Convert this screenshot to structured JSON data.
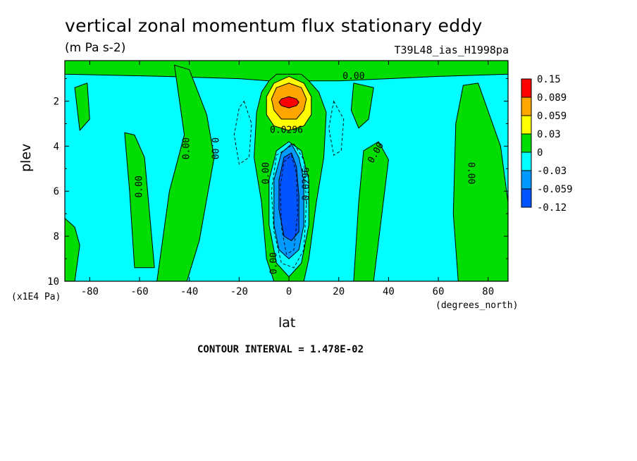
{
  "chart_data": {
    "type": "heatmap",
    "subtype": "filled-contour",
    "title": "vertical zonal momentum flux stationary eddy",
    "units": "(m Pa s-2)",
    "run_label": "T39L48_ias_H1998pa",
    "xlabel": "lat",
    "x_units": "(degrees_north)",
    "ylabel": "plev",
    "y_scale_note": "(x1E4 Pa)",
    "xlim": [
      -90,
      88
    ],
    "ylim": [
      0.2,
      10
    ],
    "y_inverted": true,
    "x_ticks": [
      -80,
      -60,
      -40,
      -20,
      0,
      20,
      40,
      60,
      80
    ],
    "y_ticks": [
      2,
      4,
      6,
      8,
      10
    ],
    "contour_interval_text": "CONTOUR INTERVAL = 1.478E-02",
    "grid": false,
    "legend": {
      "placement": "right",
      "levels": [
        "0.15",
        "0.089",
        "0.059",
        "0.03",
        "0",
        "-0.03",
        "-0.059",
        "-0.12"
      ],
      "colors": [
        "#ff0000",
        "#ffa500",
        "#ffff00",
        "#00dd00",
        "#00ffff",
        "#0099ff",
        "#0055ff"
      ]
    },
    "background_color": "#00ffff",
    "regions": [
      {
        "class": "0 to 0.03",
        "color": "#00dd00",
        "pts": [
          [
            -90,
            0.2
          ],
          [
            88,
            0.2
          ],
          [
            88,
            0.8
          ],
          [
            60,
            0.9
          ],
          [
            40,
            1.0
          ],
          [
            20,
            1.1
          ],
          [
            8,
            1.1
          ],
          [
            0,
            0.8
          ],
          [
            -8,
            1.1
          ],
          [
            -20,
            1.0
          ],
          [
            -50,
            0.9
          ],
          [
            -90,
            0.8
          ]
        ]
      },
      {
        "class": "0 to 0.03",
        "color": "#00dd00",
        "pts": [
          [
            -86,
            1.4
          ],
          [
            -81,
            1.2
          ],
          [
            -80,
            2.8
          ],
          [
            -84,
            3.3
          ]
        ]
      },
      {
        "class": "0 to 0.03",
        "color": "#00dd00",
        "pts": [
          [
            -46,
            0.4
          ],
          [
            -40,
            0.6
          ],
          [
            -33,
            2.6
          ],
          [
            -30,
            4.5
          ],
          [
            -36,
            8.2
          ],
          [
            -41,
            10
          ],
          [
            -53,
            10
          ],
          [
            -48,
            6
          ],
          [
            -42,
            3.5
          ]
        ]
      },
      {
        "class": "0 to 0.03",
        "color": "#00dd00",
        "pts": [
          [
            -66,
            3.4
          ],
          [
            -62,
            3.5
          ],
          [
            -58,
            4.5
          ],
          [
            -54,
            9.4
          ],
          [
            -62,
            9.4
          ],
          [
            -64,
            6
          ]
        ]
      },
      {
        "class": "0 to 0.03",
        "color": "#00dd00",
        "pts": [
          [
            -90,
            7.2
          ],
          [
            -86,
            7.6
          ],
          [
            -84,
            8.4
          ],
          [
            -86,
            10
          ],
          [
            -90,
            10
          ]
        ]
      },
      {
        "class": "0 to 0.03",
        "color": "#00dd00",
        "pts": [
          [
            -8,
            1.1
          ],
          [
            -5,
            0.8
          ],
          [
            5,
            0.8
          ],
          [
            8,
            1.1
          ],
          [
            12,
            1.6
          ],
          [
            15,
            2.5
          ],
          [
            14,
            4.5
          ],
          [
            11,
            6.5
          ],
          [
            8,
            9
          ],
          [
            6,
            10
          ],
          [
            -6,
            10
          ],
          [
            -9,
            9
          ],
          [
            -11,
            6.5
          ],
          [
            -14,
            4.5
          ],
          [
            -13,
            2.5
          ],
          [
            -11,
            1.6
          ]
        ]
      },
      {
        "class": "0 to 0.03",
        "color": "#00dd00",
        "pts": [
          [
            26,
            1.2
          ],
          [
            34,
            1.4
          ],
          [
            32,
            2.8
          ],
          [
            28,
            3.2
          ],
          [
            25,
            2.4
          ]
        ]
      },
      {
        "class": "0 to 0.03",
        "color": "#00dd00",
        "pts": [
          [
            30,
            4.2
          ],
          [
            36,
            3.8
          ],
          [
            40,
            4.6
          ],
          [
            34,
            10
          ],
          [
            26,
            10
          ],
          [
            28,
            6.5
          ]
        ]
      },
      {
        "class": "0 to 0.03",
        "color": "#00dd00",
        "pts": [
          [
            70,
            1.3
          ],
          [
            76,
            1.2
          ],
          [
            85,
            4
          ],
          [
            88,
            6.5
          ],
          [
            88,
            10
          ],
          [
            68,
            10
          ],
          [
            66,
            7
          ],
          [
            67,
            3
          ]
        ]
      },
      {
        "class": "0.03 to 0.059",
        "color": "#ffff00",
        "pts": [
          [
            0,
            0.9
          ],
          [
            6,
            1.2
          ],
          [
            9,
            1.8
          ],
          [
            9,
            2.6
          ],
          [
            6,
            3.1
          ],
          [
            0,
            3.3
          ],
          [
            -6,
            3.1
          ],
          [
            -9,
            2.6
          ],
          [
            -9,
            1.8
          ],
          [
            -6,
            1.2
          ]
        ]
      },
      {
        "class": "0.059 to 0.089",
        "color": "#ffa500",
        "pts": [
          [
            0,
            1.2
          ],
          [
            5,
            1.4
          ],
          [
            7,
            1.9
          ],
          [
            6,
            2.4
          ],
          [
            3,
            2.8
          ],
          [
            -3,
            2.8
          ],
          [
            -6,
            2.4
          ],
          [
            -7,
            1.9
          ],
          [
            -5,
            1.4
          ]
        ]
      },
      {
        "class": "0.089 to 0.15",
        "color": "#ff0000",
        "pts": [
          [
            0,
            1.8
          ],
          [
            3,
            1.9
          ],
          [
            4,
            2.05
          ],
          [
            3,
            2.2
          ],
          [
            0,
            2.3
          ],
          [
            -3,
            2.2
          ],
          [
            -4,
            2.05
          ],
          [
            -3,
            1.9
          ]
        ]
      },
      {
        "class": "-0.03 to 0",
        "color": "#00ffff",
        "pts": [
          [
            0,
            3.8
          ],
          [
            5,
            4.2
          ],
          [
            8,
            5.5
          ],
          [
            8,
            7.5
          ],
          [
            5,
            9.2
          ],
          [
            0,
            9.8
          ],
          [
            -5,
            9.2
          ],
          [
            -8,
            7.5
          ],
          [
            -8,
            5.5
          ],
          [
            -5,
            4.2
          ]
        ]
      },
      {
        "class": "-0.059 to -0.03",
        "color": "#0099ff",
        "pts": [
          [
            1,
            3.9
          ],
          [
            4,
            4.5
          ],
          [
            6,
            5.5
          ],
          [
            6,
            7.5
          ],
          [
            4,
            8.6
          ],
          [
            0,
            9.0
          ],
          [
            -4,
            8.6
          ],
          [
            -6,
            7.5
          ],
          [
            -6,
            5.5
          ],
          [
            -3,
            4.3
          ]
        ]
      },
      {
        "class": "-0.12 to -0.059",
        "color": "#0055ff",
        "pts": [
          [
            1,
            4.3
          ],
          [
            3,
            4.9
          ],
          [
            4,
            6.2
          ],
          [
            4,
            7.8
          ],
          [
            1,
            8.2
          ],
          [
            -2,
            8.0
          ],
          [
            -4,
            6.8
          ],
          [
            -4,
            5.5
          ],
          [
            -2,
            4.5
          ]
        ]
      }
    ],
    "dashed_contours": [
      [
        [
          -18,
          2.0
        ],
        [
          -15,
          3.0
        ],
        [
          -16,
          4.5
        ],
        [
          -20,
          4.8
        ],
        [
          -22,
          3.5
        ],
        [
          -20,
          2.3
        ]
      ],
      [
        [
          18,
          2.0
        ],
        [
          22,
          2.8
        ],
        [
          21,
          4.2
        ],
        [
          18,
          4.4
        ],
        [
          16,
          3.2
        ]
      ],
      [
        [
          2,
          3.9
        ],
        [
          6,
          4.6
        ],
        [
          7,
          6.5
        ],
        [
          6,
          8.6
        ],
        [
          2,
          9.4
        ],
        [
          -3,
          9.2
        ],
        [
          -6,
          7.8
        ],
        [
          -7,
          6
        ],
        [
          -5,
          4.4
        ]
      ],
      [
        [
          1,
          4.4
        ],
        [
          3,
          5.2
        ],
        [
          3.5,
          7
        ],
        [
          2,
          8.6
        ],
        [
          -1,
          8.8
        ],
        [
          -3,
          7.6
        ],
        [
          -3.5,
          5.8
        ],
        [
          -2,
          4.7
        ]
      ]
    ],
    "annotations": [
      {
        "text": "0.00",
        "x": 26,
        "y": 0.9,
        "angle": 0
      },
      {
        "text": "0.00",
        "x": -41,
        "y": 4.1,
        "angle": -90
      },
      {
        "text": "0.00",
        "x": -30,
        "y": 4.1,
        "angle": 90
      },
      {
        "text": "0.00",
        "x": -60,
        "y": 5.8,
        "angle": -90
      },
      {
        "text": "0.00",
        "x": -9,
        "y": 5.2,
        "angle": -90
      },
      {
        "text": "0.00",
        "x": -6,
        "y": 9.2,
        "angle": -90
      },
      {
        "text": "0.00",
        "x": 35,
        "y": 4.3,
        "angle": -60
      },
      {
        "text": "0.00",
        "x": 73,
        "y": 5.2,
        "angle": 90
      },
      {
        "text": "0.0296",
        "x": -1,
        "y": 3.3,
        "angle": 0
      },
      {
        "text": "-0.0296",
        "x": 7,
        "y": 5.8,
        "angle": -90
      }
    ]
  }
}
